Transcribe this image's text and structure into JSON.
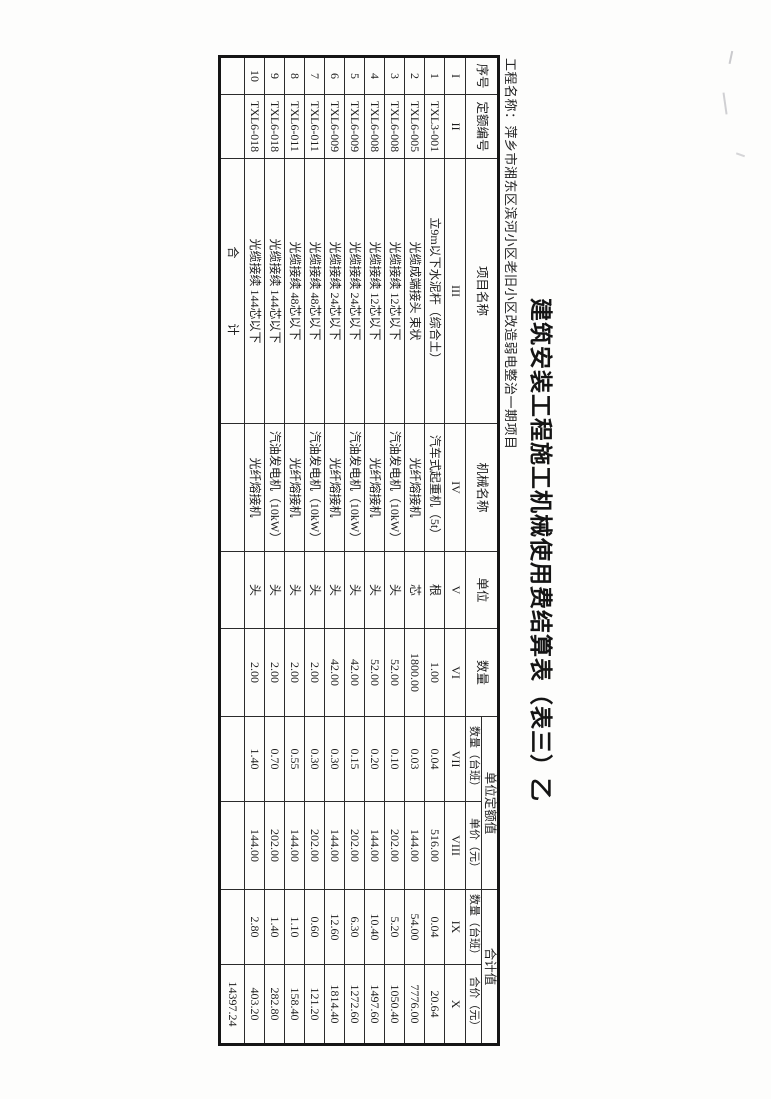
{
  "document": {
    "title": "建筑安装工程施工机械使用费结算表（表三）乙",
    "project_label": "工程名称：",
    "project_name": "萍乡市湘东区滨河小区老旧小区改造弱电整治一期项目"
  },
  "table": {
    "col_keys": [
      "seq",
      "quota_no",
      "item_name",
      "machine_name",
      "unit",
      "quantity",
      "quota_qty_shift",
      "quota_unit_price",
      "total_qty_shift",
      "total_price"
    ],
    "headers": {
      "seq": "序号",
      "quota_no": "定额编号",
      "item_name": "项目名称",
      "machine_name": "机械名称",
      "unit": "单位",
      "quantity": "数量",
      "unit_quota_value": "单位定额值",
      "total_value": "合计值",
      "quota_qty_shift": "数量（台班）",
      "quota_unit_price": "单价（元）",
      "total_qty_shift": "数量（台班）",
      "total_price": "合价（元）"
    },
    "roman_row": [
      "I",
      "II",
      "III",
      "IV",
      "V",
      "VI",
      "VII",
      "VIII",
      "IX",
      "X"
    ],
    "rows": [
      [
        "1",
        "TXL3-001",
        "立9m以下水泥杆（综合土）",
        "汽车式起重机（5t）",
        "根",
        "1.00",
        "0.04",
        "516.00",
        "0.04",
        "20.64"
      ],
      [
        "2",
        "TXL6-005",
        "光缆成端接头 束状",
        "光纤熔接机",
        "芯",
        "1800.00",
        "0.03",
        "144.00",
        "54.00",
        "7776.00"
      ],
      [
        "3",
        "TXL6-008",
        "光缆接续 12芯以下",
        "汽油发电机（10kW）",
        "头",
        "52.00",
        "0.10",
        "202.00",
        "5.20",
        "1050.40"
      ],
      [
        "4",
        "TXL6-008",
        "光缆接续 12芯以下",
        "光纤熔接机",
        "头",
        "52.00",
        "0.20",
        "144.00",
        "10.40",
        "1497.60"
      ],
      [
        "5",
        "TXL6-009",
        "光缆接续 24芯以下",
        "汽油发电机（10kW）",
        "头",
        "42.00",
        "0.15",
        "202.00",
        "6.30",
        "1272.60"
      ],
      [
        "6",
        "TXL6-009",
        "光缆接续 24芯以下",
        "光纤熔接机",
        "头",
        "42.00",
        "0.30",
        "144.00",
        "12.60",
        "1814.40"
      ],
      [
        "7",
        "TXL6-011",
        "光缆接续 48芯以下",
        "汽油发电机（10kW）",
        "头",
        "2.00",
        "0.30",
        "202.00",
        "0.60",
        "121.20"
      ],
      [
        "8",
        "TXL6-011",
        "光缆接续 48芯以下",
        "光纤熔接机",
        "头",
        "2.00",
        "0.55",
        "144.00",
        "1.10",
        "158.40"
      ],
      [
        "9",
        "TXL6-018",
        "光缆接续 144芯以下",
        "汽油发电机（10kW）",
        "头",
        "2.00",
        "0.70",
        "202.00",
        "1.40",
        "282.80"
      ],
      [
        "10",
        "TXL6-018",
        "光缆接续 144芯以下",
        "光纤熔接机",
        "头",
        "2.00",
        "1.40",
        "144.00",
        "2.80",
        "403.20"
      ]
    ],
    "total_row": {
      "label": "合 计",
      "total_price": "14397.24"
    }
  }
}
